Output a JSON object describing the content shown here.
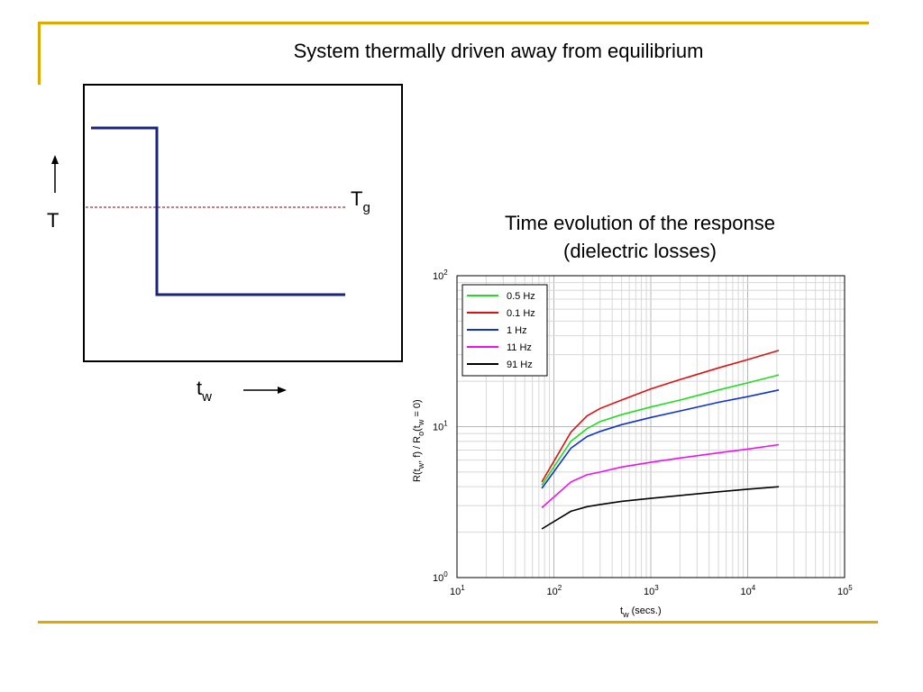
{
  "slide": {
    "title": "System thermally driven away from equilibrium",
    "accent_color": "#e0a800"
  },
  "diagram": {
    "temp_label": "T",
    "tg_label_main": "T",
    "tg_label_sub": "g",
    "tw_label_main": "t",
    "tw_label_sub": "w",
    "line_color": "#1a237e",
    "dashed_color": "#8b0000"
  },
  "chart_title": {
    "line1": "Time evolution of the response",
    "line2": "(dielectric losses)"
  },
  "chart_data": {
    "type": "line",
    "x_scale": "log",
    "y_scale": "log",
    "xlim": [
      10,
      100000
    ],
    "ylim": [
      1,
      100
    ],
    "grid": true,
    "legend_position": "top-left",
    "xlabel": {
      "main": "t",
      "sub": "w",
      "rest": " (secs.)"
    },
    "ylabel": {
      "p1": "R(t",
      "s1": "w",
      "p2": ", f) / R",
      "s2": "o",
      "p3": "(t",
      "s3": "w",
      "p4": " = 0)"
    },
    "x_ticks": [
      {
        "base": "10",
        "exp": "1",
        "value": 10
      },
      {
        "base": "10",
        "exp": "2",
        "value": 100
      },
      {
        "base": "10",
        "exp": "3",
        "value": 1000
      },
      {
        "base": "10",
        "exp": "4",
        "value": 10000
      },
      {
        "base": "10",
        "exp": "5",
        "value": 100000
      }
    ],
    "y_ticks": [
      {
        "base": "10",
        "exp": "0",
        "value": 1
      },
      {
        "base": "10",
        "exp": "1",
        "value": 10
      },
      {
        "base": "10",
        "exp": "2",
        "value": 100
      }
    ],
    "series": [
      {
        "name": "0.5 Hz",
        "color": "#22dd22",
        "x": [
          75,
          150,
          220,
          300,
          500,
          1000,
          2000,
          5000,
          10000,
          21000
        ],
        "y": [
          4.1,
          8.0,
          9.7,
          10.8,
          12.0,
          13.5,
          15.0,
          17.5,
          19.5,
          22.0
        ]
      },
      {
        "name": "0.1 Hz",
        "color": "#dd1111",
        "x": [
          75,
          150,
          220,
          300,
          500,
          1000,
          2000,
          5000,
          10000,
          21000
        ],
        "y": [
          4.3,
          9.2,
          11.8,
          13.2,
          15.0,
          17.8,
          20.5,
          24.5,
          27.8,
          32.0
        ]
      },
      {
        "name": "1 Hz",
        "color": "#1133cc",
        "x": [
          75,
          150,
          220,
          300,
          500,
          1000,
          2000,
          5000,
          10000,
          21000
        ],
        "y": [
          3.9,
          7.2,
          8.6,
          9.3,
          10.3,
          11.5,
          12.7,
          14.5,
          15.8,
          17.5
        ]
      },
      {
        "name": "11 Hz",
        "color": "#ee11ee",
        "x": [
          75,
          150,
          220,
          300,
          500,
          1000,
          2000,
          5000,
          10000,
          21000
        ],
        "y": [
          2.9,
          4.3,
          4.8,
          5.0,
          5.4,
          5.8,
          6.2,
          6.7,
          7.1,
          7.6
        ]
      },
      {
        "name": "91 Hz",
        "color": "#000000",
        "x": [
          75,
          150,
          220,
          300,
          500,
          1000,
          2000,
          5000,
          10000,
          21000
        ],
        "y": [
          2.1,
          2.75,
          2.95,
          3.05,
          3.2,
          3.35,
          3.5,
          3.7,
          3.85,
          4.0
        ]
      }
    ]
  }
}
